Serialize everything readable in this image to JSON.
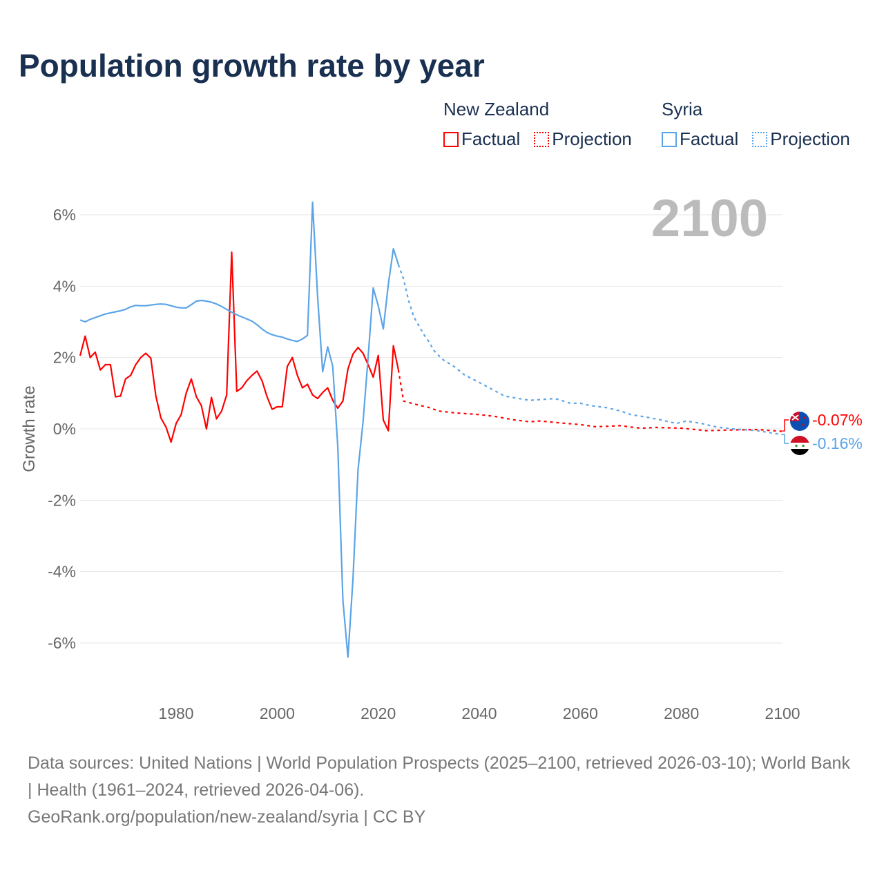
{
  "title": "Population growth rate by year",
  "legend": {
    "groups": [
      {
        "name": "New Zealand",
        "factual": "Factual",
        "projection": "Projection",
        "color": "#ff0000"
      },
      {
        "name": "Syria",
        "factual": "Factual",
        "projection": "Projection",
        "color": "#5ba4e8"
      }
    ]
  },
  "year_label": "2100",
  "end_labels": {
    "nz": "-0.07%",
    "syria": "-0.16%"
  },
  "source": {
    "line1": "Data sources: United Nations | World Population Prospects (2025–2100, retrieved 2026-03-10); World Bank | Health (1961–2024, retrieved 2026-04-06).",
    "line2": "GeoRank.org/population/new-zealand/syria | CC BY"
  },
  "chart_data": {
    "type": "line",
    "title": "Population growth rate by year",
    "xlabel": "",
    "ylabel": "Growth rate",
    "xlim": [
      1961,
      2100
    ],
    "ylim": [
      -7,
      6.5
    ],
    "xticks": [
      1980,
      2000,
      2020,
      2040,
      2060,
      2080,
      2100
    ],
    "xtick_labels": [
      "1980",
      "2000",
      "2020",
      "2040",
      "2060",
      "2080",
      "2100"
    ],
    "yticks": [
      6,
      4,
      2,
      0,
      -2,
      -4,
      -6
    ],
    "ytick_labels": [
      "6%",
      "4%",
      "2%",
      "0%",
      "-2%",
      "-4%",
      "-6%"
    ],
    "grid": true,
    "series": [
      {
        "name": "New Zealand Factual",
        "color": "#ff0000",
        "dashed": false,
        "x": [
          1961,
          1962,
          1963,
          1964,
          1965,
          1966,
          1967,
          1968,
          1969,
          1970,
          1971,
          1972,
          1973,
          1974,
          1975,
          1976,
          1977,
          1978,
          1979,
          1980,
          1981,
          1982,
          1983,
          1984,
          1985,
          1986,
          1987,
          1988,
          1989,
          1990,
          1991,
          1992,
          1993,
          1994,
          1995,
          1996,
          1997,
          1998,
          1999,
          2000,
          2001,
          2002,
          2003,
          2004,
          2005,
          2006,
          2007,
          2008,
          2009,
          2010,
          2011,
          2012,
          2013,
          2014,
          2015,
          2016,
          2017,
          2018,
          2019,
          2020,
          2021,
          2022,
          2023,
          2024
        ],
        "values": [
          2.05,
          2.6,
          2.0,
          2.15,
          1.65,
          1.8,
          1.8,
          0.9,
          0.92,
          1.4,
          1.5,
          1.8,
          2.0,
          2.12,
          1.98,
          0.92,
          0.3,
          0.05,
          -0.37,
          0.15,
          0.4,
          1.0,
          1.4,
          0.9,
          0.65,
          0.0,
          0.88,
          0.28,
          0.5,
          0.95,
          4.95,
          1.05,
          1.15,
          1.35,
          1.5,
          1.62,
          1.35,
          0.9,
          0.55,
          0.62,
          0.62,
          1.75,
          2.0,
          1.5,
          1.15,
          1.25,
          0.95,
          0.85,
          1.02,
          1.15,
          0.8,
          0.58,
          0.78,
          1.68,
          2.1,
          2.28,
          2.12,
          1.8,
          1.45,
          2.06,
          0.25,
          -0.05,
          2.33,
          1.65
        ]
      },
      {
        "name": "New Zealand Projection",
        "color": "#ff0000",
        "dashed": true,
        "x": [
          2024,
          2025,
          2027,
          2030,
          2032,
          2035,
          2040,
          2043,
          2047,
          2050,
          2052,
          2055,
          2060,
          2063,
          2065,
          2068,
          2070,
          2072,
          2075,
          2080,
          2085,
          2090,
          2095,
          2100
        ],
        "values": [
          1.65,
          0.78,
          0.7,
          0.6,
          0.5,
          0.45,
          0.4,
          0.35,
          0.25,
          0.2,
          0.22,
          0.18,
          0.12,
          0.06,
          0.07,
          0.09,
          0.05,
          0.02,
          0.04,
          0.02,
          -0.05,
          -0.03,
          -0.02,
          -0.07
        ]
      },
      {
        "name": "Syria Factual",
        "color": "#5ba4e8",
        "dashed": false,
        "x": [
          1961,
          1962,
          1963,
          1964,
          1965,
          1966,
          1967,
          1968,
          1969,
          1970,
          1971,
          1972,
          1973,
          1974,
          1975,
          1976,
          1977,
          1978,
          1979,
          1980,
          1981,
          1982,
          1983,
          1984,
          1985,
          1986,
          1987,
          1988,
          1989,
          1990,
          1991,
          1992,
          1993,
          1994,
          1995,
          1996,
          1997,
          1998,
          1999,
          2000,
          2001,
          2002,
          2003,
          2004,
          2005,
          2006,
          2007,
          2008,
          2009,
          2010,
          2011,
          2012,
          2013,
          2014,
          2015,
          2016,
          2017,
          2018,
          2019,
          2020,
          2021,
          2022,
          2023,
          2024
        ],
        "values": [
          3.05,
          3.0,
          3.07,
          3.12,
          3.17,
          3.22,
          3.25,
          3.28,
          3.31,
          3.35,
          3.42,
          3.46,
          3.45,
          3.45,
          3.47,
          3.49,
          3.5,
          3.49,
          3.45,
          3.41,
          3.39,
          3.39,
          3.48,
          3.58,
          3.6,
          3.58,
          3.55,
          3.5,
          3.43,
          3.35,
          3.27,
          3.2,
          3.14,
          3.08,
          3.02,
          2.92,
          2.8,
          2.7,
          2.64,
          2.6,
          2.57,
          2.52,
          2.48,
          2.45,
          2.52,
          2.62,
          6.35,
          3.7,
          1.6,
          2.3,
          1.75,
          -0.5,
          -4.8,
          -6.4,
          -4.2,
          -1.15,
          0.2,
          2.0,
          3.95,
          3.45,
          2.8,
          4.05,
          5.05,
          4.6
        ]
      },
      {
        "name": "Syria Projection",
        "color": "#5ba4e8",
        "dashed": true,
        "x": [
          2024,
          2025,
          2026,
          2027,
          2028,
          2029,
          2030,
          2031,
          2032,
          2033,
          2035,
          2037,
          2040,
          2042,
          2045,
          2047,
          2050,
          2052,
          2055,
          2058,
          2060,
          2062,
          2065,
          2068,
          2070,
          2073,
          2076,
          2079,
          2081,
          2084,
          2087,
          2090,
          2095,
          2100
        ],
        "values": [
          4.6,
          4.2,
          3.6,
          3.15,
          2.9,
          2.65,
          2.45,
          2.2,
          2.05,
          1.92,
          1.75,
          1.52,
          1.3,
          1.15,
          0.92,
          0.87,
          0.8,
          0.82,
          0.85,
          0.72,
          0.72,
          0.65,
          0.6,
          0.5,
          0.4,
          0.33,
          0.25,
          0.15,
          0.22,
          0.15,
          0.05,
          0.0,
          -0.05,
          -0.16
        ]
      }
    ]
  }
}
